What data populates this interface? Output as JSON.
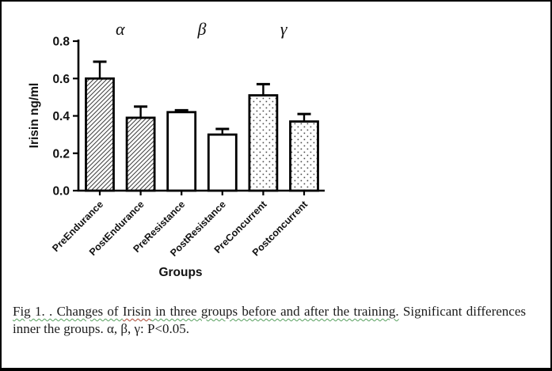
{
  "page": {
    "background": "#ffffff",
    "border_color": "#000000"
  },
  "chart_data": {
    "type": "bar",
    "categories": [
      "PreEndurance",
      "PostEndurance",
      "PreResistance",
      "PostResistance",
      "PreConcurrent",
      "Postconcurrent"
    ],
    "values": [
      0.6,
      0.39,
      0.42,
      0.3,
      0.51,
      0.37
    ],
    "errors": [
      0.09,
      0.06,
      0.01,
      0.03,
      0.06,
      0.04
    ],
    "bar_patterns": [
      "hatch",
      "hatch",
      "plain",
      "plain",
      "dots",
      "dots"
    ],
    "group_annotations": [
      {
        "label": "α",
        "center_bars": [
          0,
          1
        ]
      },
      {
        "label": "β",
        "center_bars": [
          2,
          3
        ]
      },
      {
        "label": "γ",
        "center_bars": [
          4,
          5
        ]
      }
    ],
    "xlabel": "Groups",
    "ylabel": "Irisin ng/ml",
    "ylim": [
      0,
      0.8
    ],
    "yticks": [
      "0.0",
      "0.2",
      "0.4",
      "0.6",
      "0.8"
    ],
    "bar_fill": "#ffffff",
    "bar_stroke": "#000000",
    "axis_color": "#000000",
    "grid": false,
    "legend": "none"
  },
  "caption": {
    "figure_label_and_title": "Fig 1. . Changes of ",
    "misspelled_word": "Irisin",
    "title_continued": " in three groups before and after the training.",
    "sentence2_line1": "Significant differences",
    "line2": "inner the groups. α, β, γ: P<0.05.",
    "grammar_underline_color": "#57a05f",
    "spell_underline_color": "#c4564a"
  }
}
